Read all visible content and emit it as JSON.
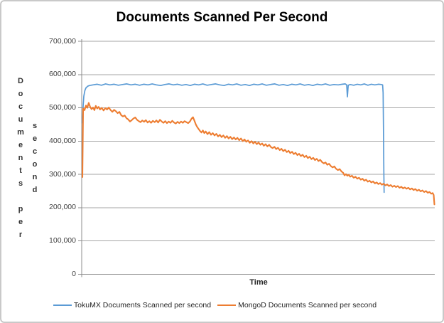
{
  "colors": {
    "tokumx_blue": "#5B9BD5",
    "mongod_orange": "#ED7D31",
    "gridline": "#A6A6A6",
    "axis": "#8C8C8C",
    "tick_text": "#404040",
    "frame_border": "#C9C9C9"
  },
  "chart_data": {
    "type": "line",
    "title": "Documents Scanned Per Second",
    "xlabel": "Time",
    "ylabel": "Documents per second",
    "ylim": [
      0,
      700000
    ],
    "ytick_step": 100000,
    "yticks": [
      "0",
      "100,000",
      "200,000",
      "300,000",
      "400,000",
      "500,000",
      "600,000",
      "700,000"
    ],
    "grid": "horizontal-only",
    "legend_position": "bottom",
    "x_axis_note": "x is elapsed time, no tick labels shown; series x stored as percent 0-100 of plot width",
    "series": [
      {
        "name": "TokuMX Documents Scanned per second",
        "color": "#5B9BD5",
        "points": [
          [
            0,
            455000
          ],
          [
            0.2,
            505000
          ],
          [
            0.4,
            535000
          ],
          [
            0.7,
            552000
          ],
          [
            1,
            560000
          ],
          [
            1.5,
            565000
          ],
          [
            2,
            567000
          ],
          [
            3,
            569000
          ],
          [
            4.2,
            571000
          ],
          [
            5.4,
            568000
          ],
          [
            6.6,
            572000
          ],
          [
            7.8,
            569000
          ],
          [
            9,
            571000
          ],
          [
            10.2,
            568000
          ],
          [
            11.4,
            570000
          ],
          [
            12.6,
            572000
          ],
          [
            13.8,
            569000
          ],
          [
            15,
            571000
          ],
          [
            16.2,
            568000
          ],
          [
            17.4,
            571000
          ],
          [
            18.6,
            569000
          ],
          [
            19.8,
            572000
          ],
          [
            21,
            569000
          ],
          [
            22.2,
            567000
          ],
          [
            23.4,
            570000
          ],
          [
            24.6,
            572000
          ],
          [
            25.8,
            569000
          ],
          [
            27,
            571000
          ],
          [
            28.2,
            568000
          ],
          [
            29.4,
            570000
          ],
          [
            30.6,
            567000
          ],
          [
            31.8,
            571000
          ],
          [
            33,
            569000
          ],
          [
            34.2,
            572000
          ],
          [
            35.4,
            568000
          ],
          [
            36.6,
            570000
          ],
          [
            37.8,
            572000
          ],
          [
            39,
            569000
          ],
          [
            40.2,
            567000
          ],
          [
            41.4,
            571000
          ],
          [
            42.6,
            569000
          ],
          [
            43.8,
            572000
          ],
          [
            45,
            568000
          ],
          [
            46.2,
            570000
          ],
          [
            47.4,
            567000
          ],
          [
            48.6,
            571000
          ],
          [
            49.8,
            569000
          ],
          [
            51,
            572000
          ],
          [
            52.2,
            568000
          ],
          [
            53.4,
            570000
          ],
          [
            54.6,
            572000
          ],
          [
            55.8,
            568000
          ],
          [
            57,
            570000
          ],
          [
            58.2,
            567000
          ],
          [
            59.4,
            571000
          ],
          [
            60.6,
            569000
          ],
          [
            61.8,
            572000
          ],
          [
            63,
            568000
          ],
          [
            64.2,
            570000
          ],
          [
            65.4,
            567000
          ],
          [
            66.6,
            571000
          ],
          [
            67.8,
            569000
          ],
          [
            69,
            572000
          ],
          [
            70.2,
            568000
          ],
          [
            71.4,
            570000
          ],
          [
            72.6,
            569000
          ],
          [
            73.8,
            571000
          ],
          [
            74.6,
            572000
          ],
          [
            75,
            569000
          ],
          [
            75.2,
            533000
          ],
          [
            75.45,
            568000
          ],
          [
            76,
            570000
          ],
          [
            77,
            568000
          ],
          [
            78,
            571000
          ],
          [
            79,
            569000
          ],
          [
            80,
            572000
          ],
          [
            81,
            568000
          ],
          [
            82,
            571000
          ],
          [
            83,
            569000
          ],
          [
            84,
            571000
          ],
          [
            84.8,
            570000
          ],
          [
            85.2,
            569000
          ],
          [
            85.35,
            545000
          ],
          [
            85.45,
            440000
          ],
          [
            85.55,
            310000
          ],
          [
            85.62,
            246000
          ]
        ]
      },
      {
        "name": "MongoD Documents Scanned per second",
        "color": "#ED7D31",
        "points": [
          [
            0,
            292000
          ],
          [
            0.2,
            498000
          ],
          [
            0.6,
            493000
          ],
          [
            1,
            507000
          ],
          [
            1.4,
            500000
          ],
          [
            1.8,
            515000
          ],
          [
            2.2,
            503000
          ],
          [
            2.6,
            496000
          ],
          [
            3,
            501000
          ],
          [
            3.4,
            493000
          ],
          [
            3.8,
            506000
          ],
          [
            4.2,
            498000
          ],
          [
            4.6,
            503000
          ],
          [
            5,
            495000
          ],
          [
            5.5,
            500000
          ],
          [
            6,
            492000
          ],
          [
            6.5,
            499000
          ],
          [
            7,
            495000
          ],
          [
            7.5,
            501000
          ],
          [
            8,
            493000
          ],
          [
            8.5,
            488000
          ],
          [
            9,
            494000
          ],
          [
            9.5,
            490000
          ],
          [
            10,
            484000
          ],
          [
            10.5,
            488000
          ],
          [
            11,
            478000
          ],
          [
            11.5,
            474000
          ],
          [
            12,
            477000
          ],
          [
            12.5,
            469000
          ],
          [
            13,
            465000
          ],
          [
            13.5,
            459000
          ],
          [
            14,
            463000
          ],
          [
            14.5,
            468000
          ],
          [
            15,
            471000
          ],
          [
            15.5,
            464000
          ],
          [
            16,
            460000
          ],
          [
            16.5,
            457000
          ],
          [
            17,
            462000
          ],
          [
            17.5,
            458000
          ],
          [
            18,
            463000
          ],
          [
            18.5,
            456000
          ],
          [
            19,
            460000
          ],
          [
            19.5,
            455000
          ],
          [
            20,
            461000
          ],
          [
            20.5,
            457000
          ],
          [
            21,
            462000
          ],
          [
            21.5,
            456000
          ],
          [
            22,
            464000
          ],
          [
            22.5,
            459000
          ],
          [
            23,
            455000
          ],
          [
            23.5,
            460000
          ],
          [
            24,
            454000
          ],
          [
            24.5,
            459000
          ],
          [
            25,
            455000
          ],
          [
            25.5,
            461000
          ],
          [
            26,
            456000
          ],
          [
            26.5,
            453000
          ],
          [
            27,
            458000
          ],
          [
            27.5,
            454000
          ],
          [
            28,
            459000
          ],
          [
            28.5,
            455000
          ],
          [
            29,
            460000
          ],
          [
            29.5,
            457000
          ],
          [
            30,
            454000
          ],
          [
            30.5,
            459000
          ],
          [
            31,
            468000
          ],
          [
            31.4,
            472000
          ],
          [
            31.8,
            461000
          ],
          [
            32.2,
            450000
          ],
          [
            32.6,
            442000
          ],
          [
            33,
            436000
          ],
          [
            33.4,
            430000
          ],
          [
            33.8,
            426000
          ],
          [
            34.2,
            432000
          ],
          [
            34.6,
            424000
          ],
          [
            35,
            429000
          ],
          [
            35.5,
            421000
          ],
          [
            36,
            427000
          ],
          [
            36.5,
            419000
          ],
          [
            37,
            424000
          ],
          [
            37.5,
            417000
          ],
          [
            38,
            422000
          ],
          [
            38.5,
            414000
          ],
          [
            39,
            419000
          ],
          [
            39.5,
            412000
          ],
          [
            40,
            417000
          ],
          [
            40.5,
            410000
          ],
          [
            41,
            415000
          ],
          [
            41.5,
            408000
          ],
          [
            42,
            413000
          ],
          [
            42.5,
            406000
          ],
          [
            43,
            411000
          ],
          [
            43.5,
            405000
          ],
          [
            44,
            410000
          ],
          [
            44.5,
            403000
          ],
          [
            45,
            408000
          ],
          [
            45.5,
            400000
          ],
          [
            46,
            405000
          ],
          [
            46.5,
            398000
          ],
          [
            47,
            402000
          ],
          [
            47.5,
            395000
          ],
          [
            48,
            400000
          ],
          [
            48.5,
            393000
          ],
          [
            49,
            398000
          ],
          [
            49.5,
            391000
          ],
          [
            50,
            396000
          ],
          [
            50.5,
            389000
          ],
          [
            51,
            393000
          ],
          [
            51.5,
            386000
          ],
          [
            52,
            391000
          ],
          [
            52.5,
            384000
          ],
          [
            53,
            389000
          ],
          [
            53.5,
            382000
          ],
          [
            54,
            379000
          ],
          [
            54.5,
            383000
          ],
          [
            55,
            376000
          ],
          [
            55.5,
            380000
          ],
          [
            56,
            373000
          ],
          [
            56.5,
            377000
          ],
          [
            57,
            370000
          ],
          [
            57.5,
            374000
          ],
          [
            58,
            367000
          ],
          [
            58.5,
            371000
          ],
          [
            59,
            364000
          ],
          [
            59.5,
            368000
          ],
          [
            60,
            361000
          ],
          [
            60.5,
            365000
          ],
          [
            61,
            358000
          ],
          [
            61.5,
            362000
          ],
          [
            62,
            355000
          ],
          [
            62.5,
            359000
          ],
          [
            63,
            352000
          ],
          [
            63.5,
            356000
          ],
          [
            64,
            349000
          ],
          [
            64.5,
            353000
          ],
          [
            65,
            346000
          ],
          [
            65.5,
            350000
          ],
          [
            66,
            343000
          ],
          [
            66.5,
            347000
          ],
          [
            67,
            340000
          ],
          [
            67.5,
            344000
          ],
          [
            68,
            337000
          ],
          [
            68.5,
            333000
          ],
          [
            69,
            336000
          ],
          [
            69.5,
            329000
          ],
          [
            70,
            332000
          ],
          [
            70.5,
            325000
          ],
          [
            71,
            321000
          ],
          [
            71.5,
            324000
          ],
          [
            72,
            317000
          ],
          [
            72.5,
            313000
          ],
          [
            73,
            316000
          ],
          [
            73.5,
            309000
          ],
          [
            74,
            305000
          ],
          [
            74.4,
            297000
          ],
          [
            74.8,
            301000
          ],
          [
            75.2,
            296000
          ],
          [
            75.6,
            299000
          ],
          [
            76,
            293000
          ],
          [
            76.5,
            296000
          ],
          [
            77,
            290000
          ],
          [
            77.5,
            293000
          ],
          [
            78,
            287000
          ],
          [
            78.5,
            290000
          ],
          [
            79,
            284000
          ],
          [
            79.5,
            287000
          ],
          [
            80,
            281000
          ],
          [
            80.5,
            284000
          ],
          [
            81,
            278000
          ],
          [
            81.5,
            281000
          ],
          [
            82,
            276000
          ],
          [
            82.5,
            279000
          ],
          [
            83,
            273000
          ],
          [
            83.5,
            276000
          ],
          [
            84,
            271000
          ],
          [
            84.5,
            274000
          ],
          [
            85,
            269000
          ],
          [
            85.5,
            272000
          ],
          [
            86,
            267000
          ],
          [
            86.5,
            270000
          ],
          [
            87,
            265000
          ],
          [
            87.5,
            268000
          ],
          [
            88,
            263000
          ],
          [
            88.5,
            266000
          ],
          [
            89,
            262000
          ],
          [
            89.5,
            265000
          ],
          [
            90,
            260000
          ],
          [
            90.5,
            263000
          ],
          [
            91,
            258000
          ],
          [
            91.5,
            261000
          ],
          [
            92,
            257000
          ],
          [
            92.5,
            260000
          ],
          [
            93,
            255000
          ],
          [
            93.5,
            258000
          ],
          [
            94,
            253000
          ],
          [
            94.5,
            256000
          ],
          [
            95,
            251000
          ],
          [
            95.5,
            254000
          ],
          [
            96,
            249000
          ],
          [
            96.5,
            252000
          ],
          [
            97,
            247000
          ],
          [
            97.5,
            250000
          ],
          [
            98,
            245000
          ],
          [
            98.5,
            247000
          ],
          [
            99,
            242000
          ],
          [
            99.4,
            244000
          ],
          [
            99.7,
            238000
          ],
          [
            99.9,
            210000
          ]
        ]
      }
    ]
  }
}
